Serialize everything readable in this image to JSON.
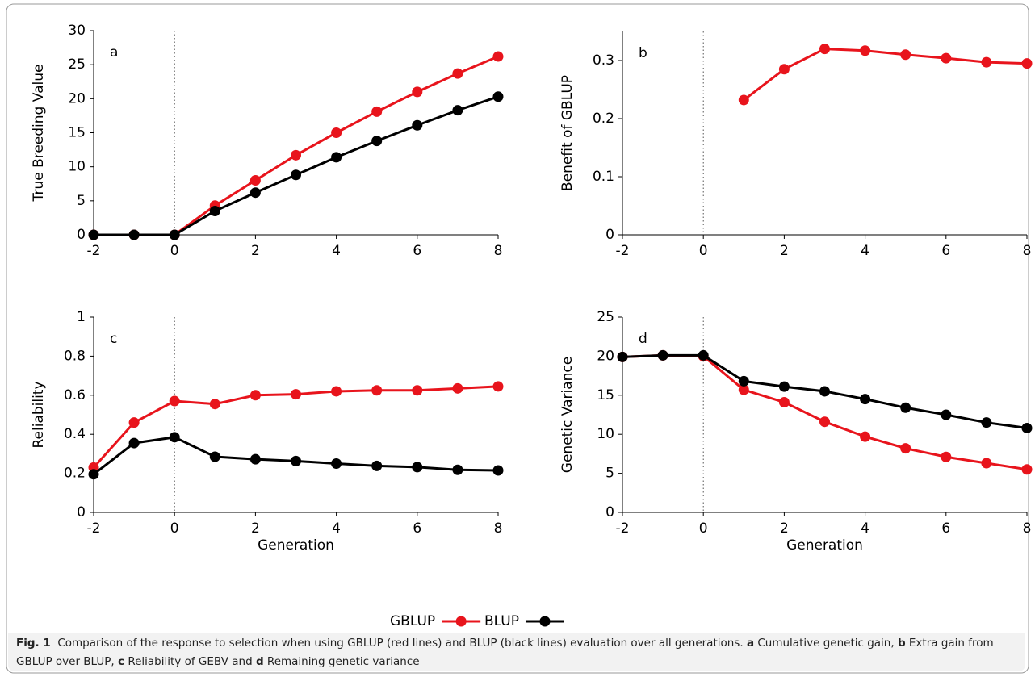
{
  "chart_data": {
    "legend": [
      {
        "name": "GBLUP",
        "color": "#e8141c"
      },
      {
        "name": "BLUP",
        "color": "#000000"
      }
    ],
    "charts": [
      {
        "type": "line",
        "panel": "a",
        "ylabel": "True Breeding Value",
        "x": [
          -2,
          -1,
          0,
          1,
          2,
          3,
          4,
          5,
          6,
          7,
          8
        ],
        "xlim": [
          -2,
          8
        ],
        "xticks": [
          -2,
          0,
          2,
          4,
          6,
          8
        ],
        "ylim": [
          0,
          30
        ],
        "yticks": [
          0,
          5,
          10,
          15,
          20,
          25,
          30
        ],
        "ref_line_x": 0,
        "series": [
          {
            "color": "#e8141c",
            "values": [
              0,
              0,
              0,
              4.3,
              8.0,
              11.7,
              15.0,
              18.1,
              21.0,
              23.7,
              26.2
            ]
          },
          {
            "color": "#000000",
            "values": [
              0,
              0,
              0,
              3.5,
              6.2,
              8.8,
              11.4,
              13.8,
              16.1,
              18.3,
              20.3
            ]
          }
        ]
      },
      {
        "type": "line",
        "panel": "b",
        "ylabel": "Benefit of GBLUP",
        "x": [
          -2,
          -1,
          0,
          1,
          2,
          3,
          4,
          5,
          6,
          7,
          8
        ],
        "xlim": [
          -2,
          8
        ],
        "xticks": [
          -2,
          0,
          2,
          4,
          6,
          8
        ],
        "ylim": [
          0,
          0.35
        ],
        "yticks": [
          0,
          0.1,
          0.2,
          0.3
        ],
        "ref_line_x": 0,
        "series": [
          {
            "color": "#e8141c",
            "values": [
              null,
              null,
              null,
              0.232,
              0.285,
              0.32,
              0.317,
              0.31,
              0.304,
              0.297,
              0.295
            ]
          }
        ]
      },
      {
        "type": "line",
        "panel": "c",
        "ylabel": "Reliability",
        "xlabel": "Generation",
        "x": [
          -2,
          -1,
          0,
          1,
          2,
          3,
          4,
          5,
          6,
          7,
          8
        ],
        "xlim": [
          -2,
          8
        ],
        "xticks": [
          -2,
          0,
          2,
          4,
          6,
          8
        ],
        "ylim": [
          0,
          1
        ],
        "yticks": [
          0,
          0.2,
          0.4,
          0.6,
          0.8,
          1
        ],
        "ref_line_x": 0,
        "series": [
          {
            "color": "#e8141c",
            "values": [
              0.23,
              0.46,
              0.57,
              0.555,
              0.6,
              0.605,
              0.62,
              0.625,
              0.625,
              0.635,
              0.645
            ]
          },
          {
            "color": "#000000",
            "values": [
              0.195,
              0.355,
              0.385,
              0.285,
              0.272,
              0.263,
              0.25,
              0.238,
              0.232,
              0.218,
              0.215
            ]
          }
        ]
      },
      {
        "type": "line",
        "panel": "d",
        "ylabel": "Genetic Variance",
        "xlabel": "Generation",
        "x": [
          -2,
          -1,
          0,
          1,
          2,
          3,
          4,
          5,
          6,
          7,
          8
        ],
        "xlim": [
          -2,
          8
        ],
        "xticks": [
          -2,
          0,
          2,
          4,
          6,
          8
        ],
        "ylim": [
          0,
          25
        ],
        "yticks": [
          0,
          5,
          10,
          15,
          20,
          25
        ],
        "ref_line_x": 0,
        "series": [
          {
            "color": "#e8141c",
            "values": [
              19.9,
              20.1,
              20.0,
              15.7,
              14.1,
              11.6,
              9.7,
              8.2,
              7.1,
              6.3,
              5.5
            ]
          },
          {
            "color": "#000000",
            "values": [
              19.9,
              20.1,
              20.1,
              16.8,
              16.1,
              15.5,
              14.5,
              13.4,
              12.5,
              11.5,
              10.8
            ]
          }
        ]
      }
    ]
  },
  "caption": {
    "label": "Fig. 1",
    "segments": [
      {
        "text": "Comparison of the response to selection when using GBLUP (red lines) and BLUP (black lines) evaluation over all generations.",
        "bold": false
      },
      {
        "text": "a",
        "bold": true
      },
      {
        "text": "Cumulative genetic gain,",
        "bold": false
      },
      {
        "text": "b",
        "bold": true
      },
      {
        "text": "Extra gain from GBLUP over BLUP,",
        "bold": false
      },
      {
        "text": "c",
        "bold": true
      },
      {
        "text": "Reliability of GEBV and",
        "bold": false
      },
      {
        "text": "d",
        "bold": true
      },
      {
        "text": "Remaining genetic variance",
        "bold": false
      }
    ]
  }
}
